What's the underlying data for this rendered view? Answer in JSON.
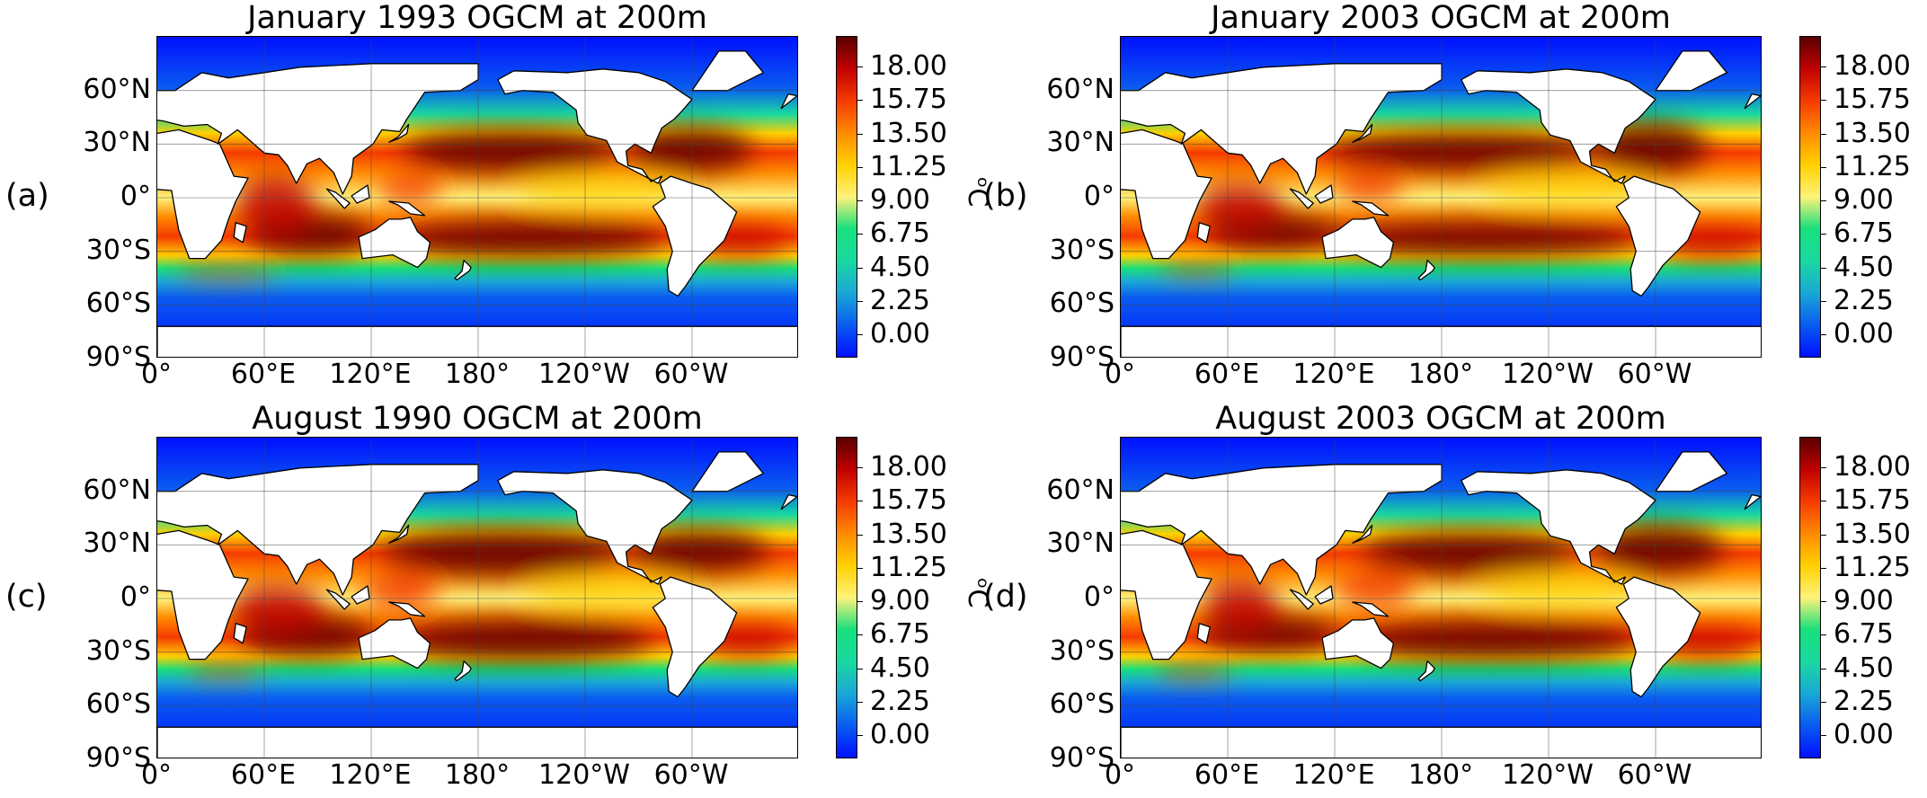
{
  "panels": [
    {
      "label": "(a)",
      "title": "January 1993 OGCM at 200m",
      "variant": 0
    },
    {
      "label": "(b)",
      "title": "January 2003 OGCM at 200m",
      "variant": 1
    },
    {
      "label": "(c)",
      "title": "August 1990 OGCM at 200m",
      "variant": 2
    },
    {
      "label": "(d)",
      "title": "August 2003 OGCM at 200m",
      "variant": 3
    }
  ],
  "lat_ticks": [
    "60°N",
    "30°N",
    "0°",
    "30°S",
    "60°S",
    "90°S"
  ],
  "lon_ticks": [
    "0°",
    "60°E",
    "120°E",
    "180°",
    "120°W",
    "60°W"
  ],
  "colorbar": {
    "ticks": [
      "18.00",
      "15.75",
      "13.50",
      "11.25",
      "9.00",
      "6.75",
      "4.50",
      "2.25",
      "0.00"
    ],
    "unit": "ᵒC",
    "colors": [
      "#0010ff",
      "#0a5cf0",
      "#1aa8d6",
      "#19d9a0",
      "#18e07c",
      "#fff27a",
      "#ffd100",
      "#ff8a00",
      "#f53b00",
      "#c10000",
      "#5a0000"
    ]
  }
}
